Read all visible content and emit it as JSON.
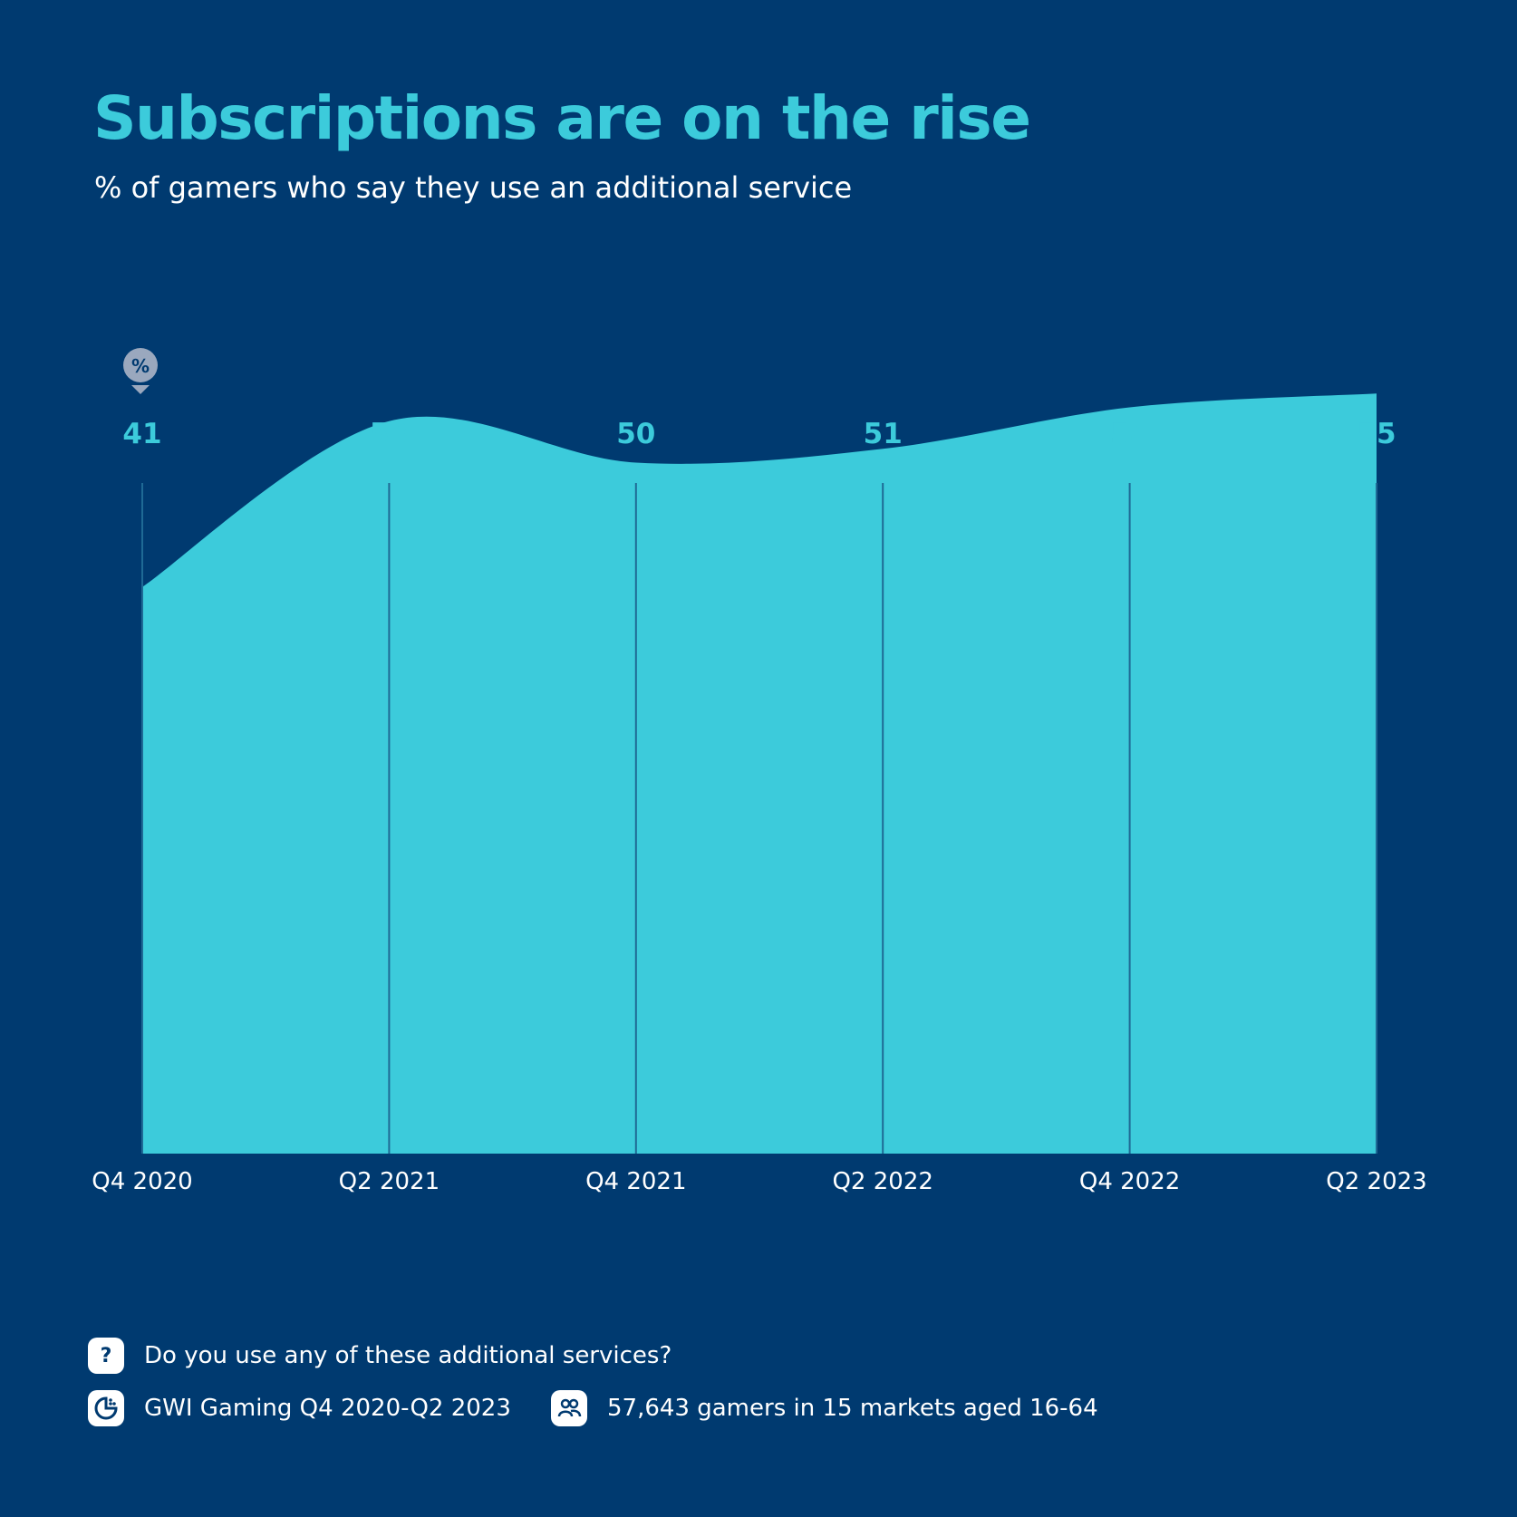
{
  "header": {
    "title": "Subscriptions are on the rise",
    "subtitle": "% of gamers who say they use an additional service"
  },
  "colors": {
    "background": "#003a70",
    "area": "#3ccbdb",
    "gridline": "#1f6a95",
    "value_label": "#3ccbdb",
    "text": "#ffffff"
  },
  "chart_data": {
    "type": "area",
    "unit_badge": "%",
    "categories": [
      "Q4 2020",
      "Q2 2021",
      "Q4 2021",
      "Q2 2022",
      "Q4 2022",
      "Q2 2023"
    ],
    "series": [
      {
        "values": [
          41,
          53,
          50,
          51,
          54,
          55
        ]
      }
    ],
    "ylim": [
      0,
      100
    ],
    "grid": "vertical"
  },
  "footer": {
    "question_icon": "question-icon",
    "question": "Do you use any of these additional services?",
    "source_icon": "source-chart-icon",
    "source": "GWI Gaming Q4 2020-Q2 2023",
    "sample_icon": "people-icon",
    "sample": "57,643 gamers in 15 markets aged 16-64"
  }
}
